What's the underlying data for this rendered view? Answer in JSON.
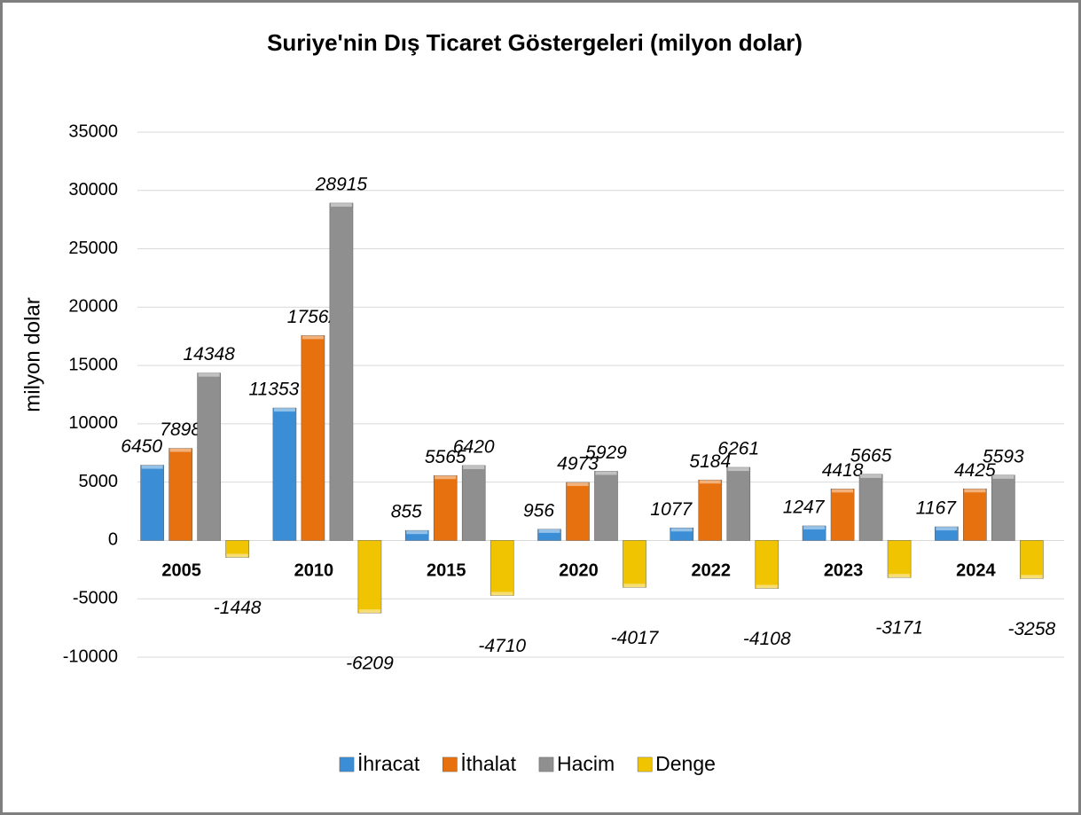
{
  "chart_data": {
    "type": "bar",
    "title": "Suriye'nin Dış Ticaret Göstergeleri (milyon dolar)",
    "y_label": "milyon dolar",
    "categories": [
      "2005",
      "2010",
      "2015",
      "2020",
      "2022",
      "2023",
      "2024"
    ],
    "series": [
      {
        "name": "İhracat",
        "color": "#3b8ed6",
        "values": [
          6450,
          11353,
          855,
          956,
          1077,
          1247,
          1167
        ]
      },
      {
        "name": "İthalat",
        "color": "#e8710f",
        "values": [
          7898,
          17562,
          5565,
          4973,
          5184,
          4418,
          4425
        ]
      },
      {
        "name": "Hacim",
        "color": "#8f8f8f",
        "values": [
          14348,
          28915,
          6420,
          5929,
          6261,
          5665,
          5593
        ]
      },
      {
        "name": "Denge",
        "color": "#f0c400",
        "values": [
          -1448,
          -6209,
          -4710,
          -4017,
          -4108,
          -3171,
          -3258
        ]
      }
    ],
    "ylim": [
      -10000,
      35000
    ],
    "yticks": [
      -10000,
      -5000,
      0,
      5000,
      10000,
      15000,
      20000,
      25000,
      30000,
      35000
    ],
    "grid": true,
    "legend": "bottom"
  }
}
